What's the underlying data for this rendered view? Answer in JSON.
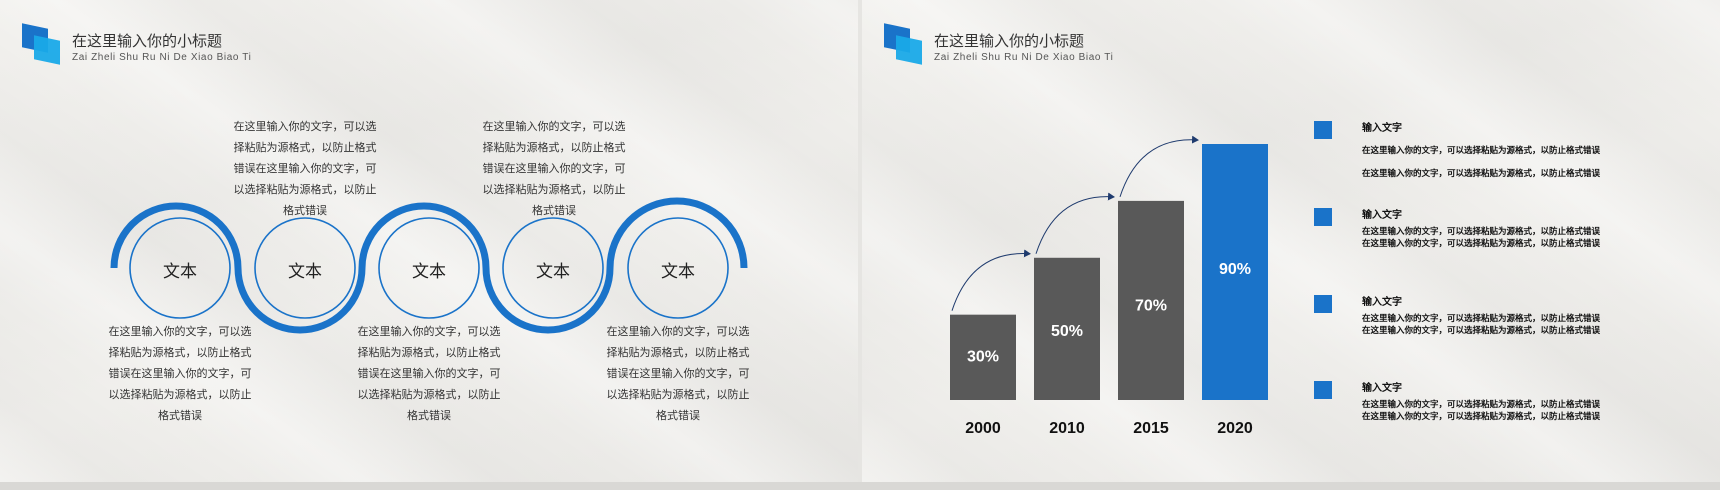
{
  "left_slide": {
    "title": "在这里输入你的小标题",
    "subtitle": "Zai  Zheli  Shu  Ru  Ni  De  Xiao  Biao  Ti",
    "circles": [
      {
        "label": "文本"
      },
      {
        "label": "文本"
      },
      {
        "label": "文本"
      },
      {
        "label": "文本"
      },
      {
        "label": "文本"
      }
    ],
    "top_paragraphs": [
      {
        "lines": [
          "在这里输入你的文字，可以选",
          "择粘贴为源格式，以防止格式",
          "错误在这里输入你的文字，可",
          "以选择粘贴为源格式，以防止",
          "格式错误"
        ]
      },
      {
        "lines": [
          "在这里输入你的文字，可以选",
          "择粘贴为源格式，以防止格式",
          "错误在这里输入你的文字，可",
          "以选择粘贴为源格式，以防止",
          "格式错误"
        ]
      }
    ],
    "bottom_paragraphs": [
      {
        "lines": [
          "在这里输入你的文字，可以选",
          "择粘贴为源格式，以防止格式",
          "错误在这里输入你的文字，可",
          "以选择粘贴为源格式，以防止",
          "格式错误"
        ]
      },
      {
        "lines": [
          "在这里输入你的文字，可以选",
          "择粘贴为源格式，以防止格式",
          "错误在这里输入你的文字，可",
          "以选择粘贴为源格式，以防止",
          "格式错误"
        ]
      },
      {
        "lines": [
          "在这里输入你的文字，可以选",
          "择粘贴为源格式，以防止格式",
          "错误在这里输入你的文字，可",
          "以选择粘贴为源格式，以防止",
          "格式错误"
        ]
      }
    ]
  },
  "right_slide": {
    "title": "在这里输入你的小标题",
    "subtitle": "Zai  Zheli  Shu  Ru  Ni  De  Xiao  Biao  Ti",
    "legend": [
      {
        "title": "输入文字",
        "lines": [
          "在这里输入你的文字，可以选择粘贴为源格式，以防止格式错误",
          "在这里输入你的文字，可以选择粘贴为源格式，以防止格式错误"
        ]
      },
      {
        "title": "输入文字",
        "lines": [
          "在这里输入你的文字，可以选择粘贴为源格式，以防止格式错误",
          "在这里输入你的文字，可以选择粘贴为源格式，以防止格式错误"
        ]
      },
      {
        "title": "输入文字",
        "lines": [
          "在这里输入你的文字，可以选择粘贴为源格式，以防止格式错误",
          "在这里输入你的文字，可以选择粘贴为源格式，以防止格式错误"
        ]
      },
      {
        "title": "输入文字",
        "lines": [
          "在这里输入你的文字，可以选择粘贴为源格式，以防止格式错误",
          "在这里输入你的文字，可以选择粘贴为源格式，以防止格式错误"
        ]
      }
    ]
  },
  "colors": {
    "accent_blue": "#1a73c9",
    "light_blue": "#19a9e8",
    "bar_gray": "#595959",
    "arrow": "#1f3b6e"
  },
  "chart_data": {
    "type": "bar",
    "categories": [
      "2000",
      "2010",
      "2015",
      "2020"
    ],
    "values": [
      30,
      50,
      70,
      90
    ],
    "value_labels": [
      "30%",
      "50%",
      "70%",
      "90%"
    ],
    "highlight_index": 3,
    "ylim": [
      0,
      90
    ]
  }
}
